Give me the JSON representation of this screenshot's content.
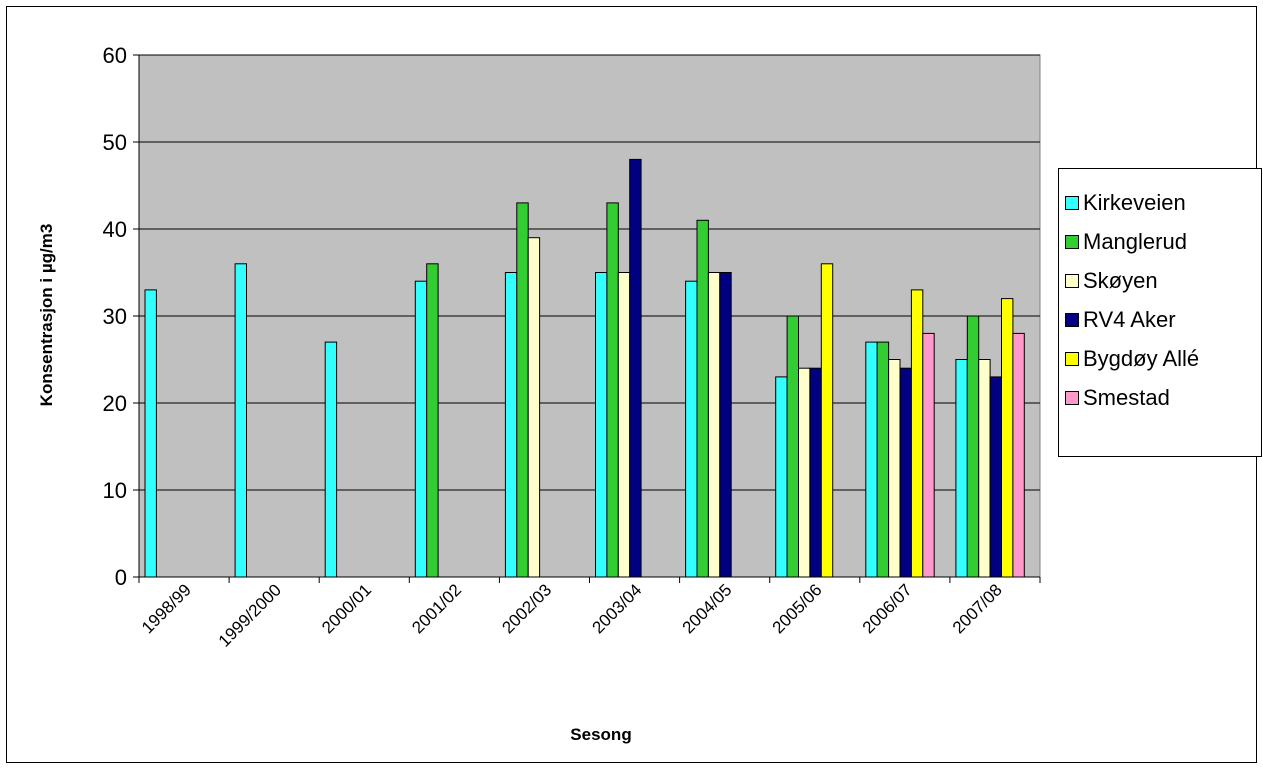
{
  "chart_data": {
    "type": "bar",
    "title": "",
    "xlabel": "Sesong",
    "ylabel": "Konsentrasjon i µg/m3",
    "ylim": [
      0,
      60
    ],
    "yticks": [
      0,
      10,
      20,
      30,
      40,
      50,
      60
    ],
    "grid": true,
    "legend_position": "right",
    "plot_background": "#c0c0c0",
    "categories": [
      "1998/99",
      "1999/2000",
      "2000/01",
      "2001/02",
      "2002/03",
      "2003/04",
      "2004/05",
      "2005/06",
      "2006/07",
      "2007/08"
    ],
    "series": [
      {
        "name": "Kirkeveien",
        "color": "#33ffff",
        "values": [
          33,
          36,
          27,
          34,
          35,
          35,
          34,
          23,
          27,
          25
        ]
      },
      {
        "name": "Manglerud",
        "color": "#33cc33",
        "values": [
          null,
          null,
          null,
          36,
          43,
          43,
          41,
          30,
          27,
          30
        ]
      },
      {
        "name": "Skøyen",
        "color": "#ffffcc",
        "values": [
          null,
          null,
          null,
          null,
          39,
          35,
          35,
          24,
          25,
          25
        ]
      },
      {
        "name": "RV4 Aker",
        "color": "#000080",
        "values": [
          null,
          null,
          null,
          null,
          null,
          48,
          35,
          24,
          24,
          23
        ]
      },
      {
        "name": "Bygdøy Allé",
        "color": "#ffff00",
        "values": [
          null,
          null,
          null,
          null,
          null,
          null,
          null,
          36,
          33,
          32
        ]
      },
      {
        "name": "Smestad",
        "color": "#ff99cc",
        "values": [
          null,
          null,
          null,
          null,
          null,
          null,
          null,
          null,
          28,
          28
        ]
      }
    ]
  }
}
